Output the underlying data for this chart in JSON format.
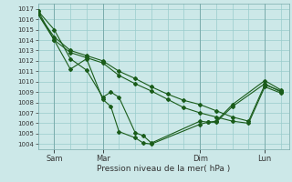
{
  "background_color": "#cce8e8",
  "grid_color": "#99cccc",
  "line_color": "#1a5c1a",
  "xlabel_text": "Pression niveau de la mer( hPa )",
  "ylim": [
    1003.5,
    1017.5
  ],
  "yticks": [
    1004,
    1005,
    1006,
    1007,
    1008,
    1009,
    1010,
    1011,
    1012,
    1013,
    1014,
    1015,
    1016,
    1017
  ],
  "xtick_labels": [
    "Sam",
    "Mar",
    "Dim",
    "Lun"
  ],
  "xtick_positions": [
    2,
    8,
    20,
    28
  ],
  "xlim": [
    0,
    31
  ],
  "series": [
    {
      "x": [
        0,
        2,
        4,
        6,
        8,
        9,
        10,
        12,
        13,
        14,
        20,
        21,
        22,
        24,
        28,
        30
      ],
      "y": [
        1016.8,
        1015.0,
        1012.2,
        1011.1,
        1008.5,
        1009.0,
        1008.5,
        1005.1,
        1004.8,
        1004.1,
        1006.2,
        1006.1,
        1006.1,
        1007.6,
        1009.8,
        1009.0
      ]
    },
    {
      "x": [
        0,
        2,
        4,
        6,
        8,
        9,
        10,
        12,
        13,
        14,
        20,
        21,
        22,
        24,
        28,
        30
      ],
      "y": [
        1016.8,
        1014.0,
        1011.2,
        1012.2,
        1008.3,
        1007.6,
        1005.2,
        1004.6,
        1004.1,
        1004.0,
        1005.9,
        1006.1,
        1006.2,
        1007.8,
        1010.1,
        1009.2
      ]
    },
    {
      "x": [
        0,
        2,
        4,
        6,
        8,
        10,
        12,
        14,
        16,
        18,
        20,
        22,
        24,
        26,
        28,
        30
      ],
      "y": [
        1016.5,
        1014.3,
        1013.0,
        1012.5,
        1012.0,
        1011.0,
        1010.3,
        1009.5,
        1008.8,
        1008.2,
        1007.8,
        1007.2,
        1006.6,
        1006.2,
        1009.7,
        1009.1
      ]
    },
    {
      "x": [
        0,
        2,
        4,
        6,
        8,
        10,
        12,
        14,
        16,
        18,
        20,
        22,
        24,
        26,
        28,
        30
      ],
      "y": [
        1016.5,
        1014.0,
        1012.8,
        1012.3,
        1011.8,
        1010.6,
        1009.8,
        1009.1,
        1008.3,
        1007.5,
        1007.0,
        1006.6,
        1006.2,
        1006.0,
        1009.5,
        1008.9
      ]
    }
  ],
  "marker": "D",
  "markersize": 2.0,
  "linewidth": 0.8,
  "ytick_fontsize": 5,
  "xtick_fontsize": 6,
  "xlabel_fontsize": 6.5
}
